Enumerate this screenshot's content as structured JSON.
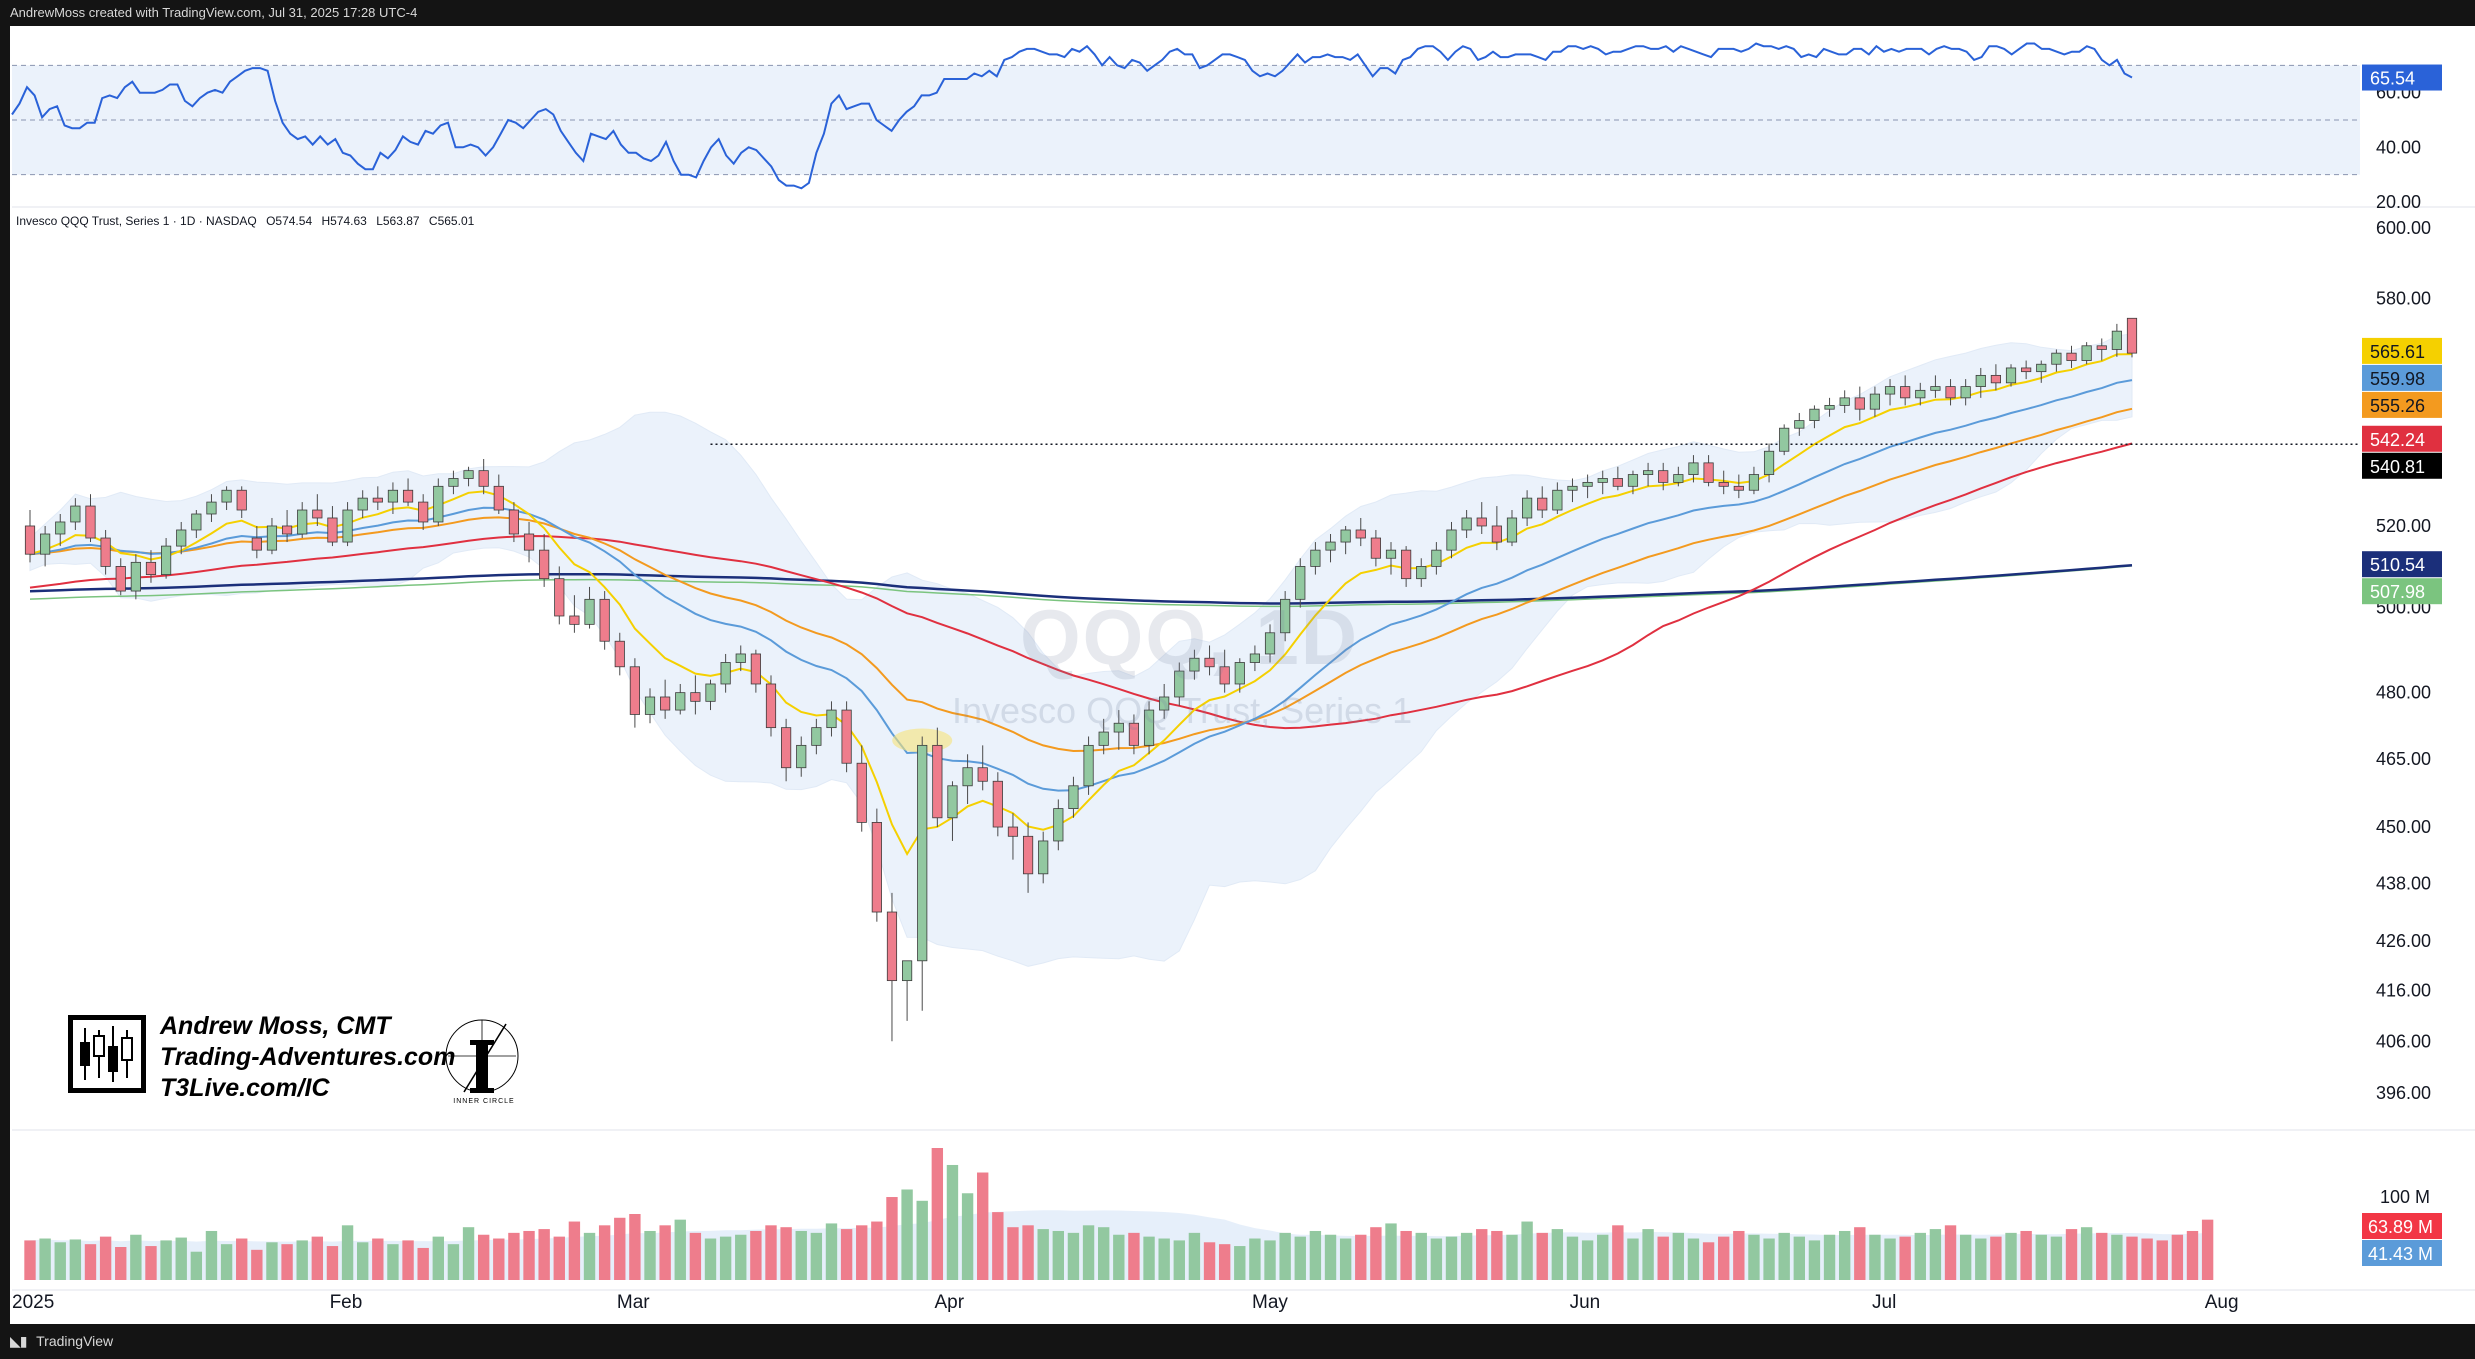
{
  "header": {
    "attribution": "AndrewMoss created with TradingView.com, Jul 31, 2025 17:28 UTC-4",
    "footer": "TradingView",
    "symbol_line": [
      "Invesco QQQ Trust, Series 1 · 1D · NASDAQ",
      "O574.54",
      "H574.63",
      "L563.87",
      "C565.01"
    ]
  },
  "watermark": {
    "symbol": "QQQ, 1D",
    "name": "Invesco QQQ Trust, Series 1"
  },
  "branding": {
    "author": "Andrew Moss, CMT",
    "site": "Trading-Adventures.com",
    "link": "T3Live.com/IC",
    "badge": "INNER CIRCLE"
  },
  "colors": {
    "up": "#92c8a0",
    "down": "#ee7d8c",
    "ema8": "#f5d000",
    "ema21": "#5b9bd9",
    "ema50_orange": "#f39a1f",
    "sma50": "#e03040",
    "sma200_navy": "#1b2f7a",
    "sma200_green": "#7bc47f",
    "rsi": "#2a62d8",
    "bb_fill": "#dbe8f8"
  },
  "chart_data": [
    {
      "type": "line",
      "title": "RSI",
      "ylim": [
        20,
        80
      ],
      "y_ticks": [
        "20.00",
        "40.00",
        "60.00"
      ],
      "overbought": 70,
      "oversold": 30,
      "midline": 50,
      "last_value_label": "65.54",
      "values": [
        52,
        56,
        62,
        59,
        51,
        54,
        55,
        48,
        47,
        47,
        49,
        49,
        58,
        59,
        58,
        62,
        64,
        60,
        60,
        60,
        61,
        63,
        63,
        57,
        55,
        58,
        60,
        61,
        60,
        64,
        66,
        68,
        69,
        69,
        68,
        57,
        49,
        45,
        43,
        44,
        41,
        44,
        41,
        43,
        38,
        37,
        34,
        32,
        32,
        38,
        36,
        39,
        44,
        42,
        41,
        46,
        45,
        48,
        49,
        40,
        40,
        41,
        40,
        37,
        40,
        45,
        50,
        49,
        47,
        50,
        53,
        54,
        52,
        46,
        42,
        38,
        35,
        45,
        44,
        43,
        46,
        41,
        38,
        38,
        36,
        35,
        37,
        42,
        35,
        30,
        30,
        29,
        35,
        40,
        43,
        37,
        34,
        38,
        40,
        39,
        36,
        33,
        28,
        26,
        26,
        25,
        27,
        38,
        45,
        56,
        59,
        54,
        55,
        56,
        56,
        50,
        48,
        46,
        50,
        53,
        55,
        59,
        59,
        60,
        65,
        65,
        65,
        65,
        67,
        66,
        68,
        66,
        72,
        73,
        75,
        76,
        76,
        75,
        74,
        74,
        73,
        76,
        75,
        77,
        74,
        70,
        73,
        70,
        69,
        72,
        71,
        68,
        70,
        72,
        75,
        76,
        74,
        74,
        69,
        70,
        72,
        74,
        74,
        73,
        72,
        68,
        66,
        67,
        66,
        68,
        71,
        74,
        71,
        73,
        73,
        74,
        73,
        73,
        72,
        74,
        70,
        66,
        69,
        69,
        67,
        72,
        73,
        76,
        77,
        77,
        75,
        72,
        75,
        77,
        76,
        72,
        73,
        75,
        73,
        73,
        74,
        74,
        74,
        73,
        72,
        75,
        75,
        77,
        77,
        76,
        77,
        76,
        74,
        75,
        75,
        76,
        77,
        77,
        76,
        76,
        77,
        75,
        77,
        76,
        75,
        74,
        73,
        76,
        76,
        76,
        75,
        76,
        78,
        77,
        77,
        76,
        77,
        76,
        73,
        74,
        73,
        76,
        75,
        74,
        74,
        76,
        76,
        74,
        77,
        75,
        76,
        75,
        76,
        76,
        76,
        74,
        76,
        77,
        76,
        76,
        75,
        72,
        73,
        77,
        77,
        76,
        74,
        76,
        78,
        78,
        76,
        76,
        75,
        74,
        75,
        75,
        77,
        76,
        72,
        70,
        72,
        67,
        65.54
      ]
    },
    {
      "type": "candlestick",
      "title": "Invesco QQQ Trust, Series 1 · 1D · NASDAQ",
      "ylim": [
        390,
        600
      ],
      "scale": "log",
      "y_ticks": [
        "396.00",
        "406.00",
        "416.00",
        "426.00",
        "438.00",
        "450.00",
        "465.00",
        "480.00",
        "500.00",
        "520.00",
        "580.00",
        "600.00"
      ],
      "x_labels": [
        {
          "label": "2025",
          "index": 0
        },
        {
          "label": "Feb",
          "index": 21
        },
        {
          "label": "Mar",
          "index": 40
        },
        {
          "label": "Apr",
          "index": 61
        },
        {
          "label": "May",
          "index": 82
        },
        {
          "label": "Jun",
          "index": 103
        },
        {
          "label": "Jul",
          "index": 123
        },
        {
          "label": "Aug",
          "index": 145
        }
      ],
      "candles": [
        [
          520,
          524,
          511,
          513
        ],
        [
          513,
          520,
          510,
          518
        ],
        [
          518,
          523,
          515,
          521
        ],
        [
          521,
          527,
          519,
          525
        ],
        [
          525,
          528,
          516,
          517
        ],
        [
          517,
          519,
          508,
          510
        ],
        [
          510,
          512,
          503,
          504
        ],
        [
          504,
          513,
          502,
          511
        ],
        [
          511,
          514,
          506,
          508
        ],
        [
          508,
          517,
          507,
          515
        ],
        [
          515,
          521,
          513,
          519
        ],
        [
          519,
          524,
          517,
          523
        ],
        [
          523,
          528,
          521,
          526
        ],
        [
          526,
          530,
          524,
          529
        ],
        [
          529,
          530,
          522,
          524
        ],
        [
          517,
          520,
          512,
          514
        ],
        [
          514,
          522,
          513,
          520
        ],
        [
          520,
          524,
          516,
          518
        ],
        [
          518,
          526,
          517,
          524
        ],
        [
          524,
          528,
          520,
          522
        ],
        [
          522,
          525,
          515,
          516
        ],
        [
          516,
          526,
          515,
          524
        ],
        [
          524,
          529,
          522,
          527
        ],
        [
          527,
          530,
          524,
          526
        ],
        [
          526,
          531,
          523,
          529
        ],
        [
          529,
          532,
          525,
          526
        ],
        [
          526,
          528,
          519,
          521
        ],
        [
          521,
          532,
          520,
          530
        ],
        [
          530,
          534,
          528,
          532
        ],
        [
          532,
          535,
          530,
          534
        ],
        [
          534,
          537,
          528,
          530
        ],
        [
          530,
          533,
          523,
          524
        ],
        [
          524,
          526,
          516,
          518
        ],
        [
          518,
          521,
          511,
          514
        ],
        [
          514,
          518,
          505,
          507
        ],
        [
          507,
          510,
          496,
          498
        ],
        [
          498,
          503,
          494,
          496
        ],
        [
          496,
          505,
          495,
          502
        ],
        [
          502,
          504,
          490,
          492
        ],
        [
          492,
          494,
          484,
          486
        ],
        [
          486,
          488,
          472,
          475
        ],
        [
          475,
          481,
          473,
          479
        ],
        [
          479,
          483,
          474,
          476
        ],
        [
          476,
          482,
          475,
          480
        ],
        [
          480,
          484,
          475,
          478
        ],
        [
          478,
          483,
          476,
          482
        ],
        [
          482,
          489,
          480,
          487
        ],
        [
          487,
          491,
          485,
          489
        ],
        [
          489,
          490,
          480,
          482
        ],
        [
          482,
          484,
          470,
          472
        ],
        [
          472,
          474,
          460,
          463
        ],
        [
          463,
          470,
          461,
          468
        ],
        [
          468,
          474,
          466,
          472
        ],
        [
          472,
          478,
          470,
          476
        ],
        [
          476,
          478,
          462,
          464
        ],
        [
          464,
          468,
          449,
          451
        ],
        [
          451,
          454,
          430,
          432
        ],
        [
          432,
          436,
          406,
          418
        ],
        [
          418,
          422,
          410,
          422
        ],
        [
          422,
          470,
          412,
          468
        ],
        [
          468,
          472,
          450,
          452
        ],
        [
          452,
          460,
          447,
          459
        ],
        [
          459,
          466,
          455,
          463
        ],
        [
          463,
          468,
          458,
          460
        ],
        [
          460,
          462,
          448,
          450
        ],
        [
          450,
          453,
          443,
          448
        ],
        [
          448,
          451,
          436,
          440
        ],
        [
          440,
          449,
          438,
          447
        ],
        [
          447,
          456,
          445,
          454
        ],
        [
          454,
          461,
          452,
          459
        ],
        [
          459,
          470,
          457,
          468
        ],
        [
          468,
          474,
          466,
          471
        ],
        [
          471,
          476,
          467,
          473
        ],
        [
          473,
          475,
          466,
          468
        ],
        [
          468,
          478,
          466,
          476
        ],
        [
          476,
          482,
          474,
          479
        ],
        [
          479,
          487,
          477,
          485
        ],
        [
          485,
          490,
          483,
          488
        ],
        [
          488,
          491,
          484,
          486
        ],
        [
          486,
          490,
          480,
          482
        ],
        [
          482,
          488,
          480,
          487
        ],
        [
          487,
          491,
          485,
          489
        ],
        [
          489,
          496,
          487,
          494
        ],
        [
          494,
          504,
          492,
          502
        ],
        [
          502,
          512,
          500,
          510
        ],
        [
          510,
          516,
          508,
          514
        ],
        [
          514,
          518,
          511,
          516
        ],
        [
          516,
          520,
          513,
          519
        ],
        [
          519,
          522,
          515,
          517
        ],
        [
          517,
          519,
          510,
          512
        ],
        [
          512,
          516,
          508,
          514
        ],
        [
          514,
          515,
          505,
          507
        ],
        [
          507,
          512,
          505,
          510
        ],
        [
          510,
          516,
          508,
          514
        ],
        [
          514,
          521,
          512,
          519
        ],
        [
          519,
          524,
          517,
          522
        ],
        [
          522,
          526,
          518,
          520
        ],
        [
          520,
          525,
          514,
          516
        ],
        [
          516,
          524,
          515,
          522
        ],
        [
          522,
          529,
          520,
          527
        ],
        [
          527,
          530,
          522,
          524
        ],
        [
          524,
          531,
          523,
          529
        ],
        [
          529,
          532,
          526,
          530
        ],
        [
          530,
          533,
          527,
          531
        ],
        [
          531,
          534,
          528,
          532
        ],
        [
          532,
          535,
          529,
          530
        ],
        [
          530,
          534,
          528,
          533
        ],
        [
          533,
          536,
          530,
          534
        ],
        [
          534,
          536,
          529,
          531
        ],
        [
          531,
          535,
          530,
          533
        ],
        [
          533,
          538,
          531,
          536
        ],
        [
          536,
          538,
          530,
          531
        ],
        [
          531,
          534,
          528,
          530
        ],
        [
          530,
          533,
          527,
          529
        ],
        [
          529,
          535,
          528,
          533
        ],
        [
          533,
          541,
          531,
          539
        ],
        [
          539,
          546,
          538,
          545
        ],
        [
          545,
          549,
          543,
          547
        ],
        [
          547,
          551,
          545,
          550
        ],
        [
          550,
          553,
          548,
          551
        ],
        [
          551,
          555,
          549,
          553
        ],
        [
          553,
          556,
          547,
          550
        ],
        [
          550,
          556,
          548,
          554
        ],
        [
          554,
          558,
          551,
          556
        ],
        [
          556,
          559,
          551,
          553
        ],
        [
          553,
          557,
          551,
          555
        ],
        [
          555,
          559,
          553,
          556
        ],
        [
          556,
          558,
          551,
          553
        ],
        [
          553,
          558,
          551,
          556
        ],
        [
          556,
          561,
          553,
          559
        ],
        [
          559,
          562,
          555,
          557
        ],
        [
          557,
          562,
          556,
          561
        ],
        [
          561,
          563,
          558,
          560
        ],
        [
          560,
          563,
          557,
          562
        ],
        [
          562,
          566,
          560,
          565
        ],
        [
          565,
          567,
          561,
          563
        ],
        [
          563,
          568,
          562,
          567
        ],
        [
          567,
          569,
          563,
          566
        ],
        [
          566,
          573,
          564,
          571
        ],
        [
          574.54,
          574.63,
          563.87,
          565.01
        ]
      ],
      "series": [
        {
          "name": "8 EMA",
          "last_value_label": "565.61"
        },
        {
          "name": "21 EMA",
          "last_value_label": "559.98"
        },
        {
          "name": "Orange MA",
          "last_value_label": "555.26"
        },
        {
          "name": "50 SMA",
          "last_value_label": "542.24"
        },
        {
          "name": "200 SMA",
          "last_value_label": "510.54"
        },
        {
          "name": "Green MA",
          "last_value_label": "507.98"
        }
      ],
      "horizontal_line": {
        "value": 540.81,
        "label": "540.81"
      },
      "highlight_index": 59
    },
    {
      "type": "bar",
      "title": "Volume",
      "y_ticks": [
        "100 M"
      ],
      "volume_label": "63.89 M",
      "volume_ma_label": "41.43 M",
      "values": [
        42,
        44,
        40,
        43,
        38,
        46,
        35,
        48,
        36,
        42,
        45,
        30,
        52,
        38,
        44,
        32,
        40,
        38,
        42,
        46,
        36,
        58,
        40,
        44,
        38,
        42,
        34,
        46,
        38,
        56,
        48,
        44,
        50,
        52,
        54,
        46,
        62,
        50,
        58,
        66,
        70,
        52,
        58,
        64,
        50,
        44,
        46,
        48,
        52,
        58,
        56,
        52,
        50,
        60,
        54,
        58,
        62,
        88,
        96,
        84,
        140,
        122,
        92,
        114,
        72,
        56,
        58,
        54,
        52,
        50,
        58,
        56,
        48,
        50,
        46,
        44,
        42,
        50,
        40,
        38,
        36,
        44,
        42,
        50,
        46,
        52,
        48,
        44,
        48,
        56,
        60,
        52,
        50,
        44,
        46,
        50,
        54,
        52,
        48,
        62,
        50,
        54,
        46,
        42,
        48,
        58,
        44,
        54,
        46,
        50,
        44,
        40,
        46,
        52,
        48,
        44,
        50,
        46,
        42,
        48,
        52,
        56,
        48,
        44,
        46,
        50,
        54,
        58,
        48,
        44,
        46,
        50,
        52,
        48,
        46,
        54,
        56,
        50,
        48,
        46,
        44,
        42,
        48,
        52,
        64
      ]
    }
  ]
}
